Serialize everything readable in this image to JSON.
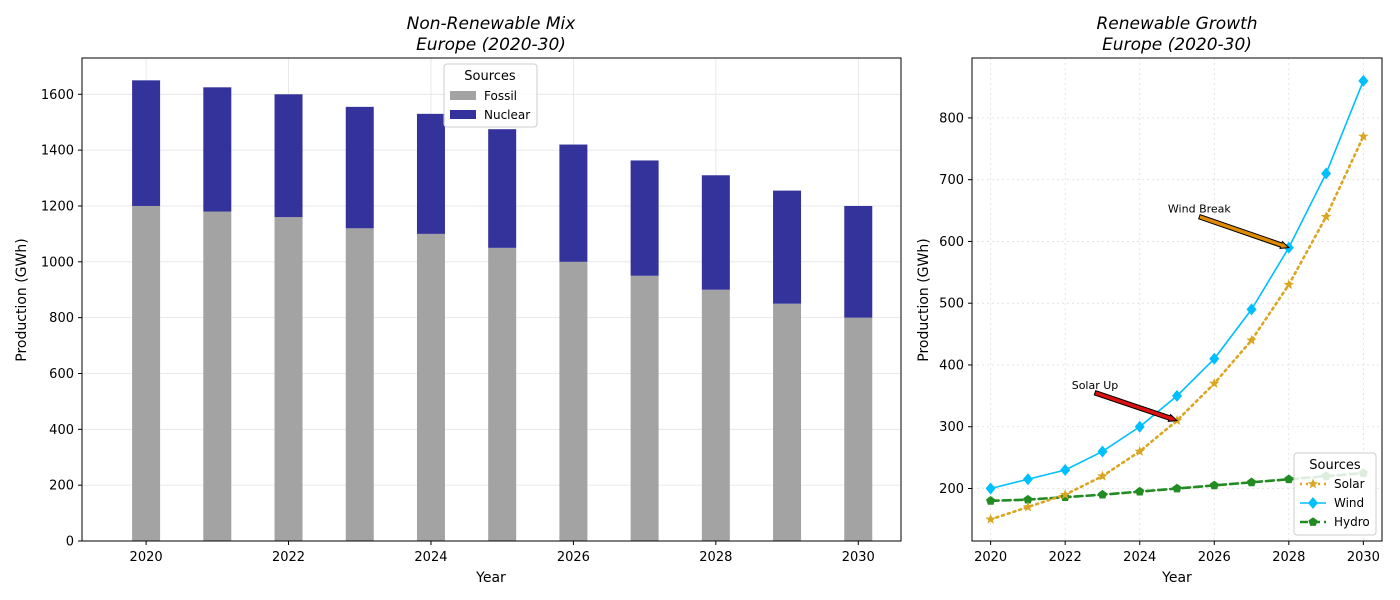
{
  "chart_data": [
    {
      "type": "bar",
      "stacked": true,
      "title_line1": "Non-Renewable Mix",
      "title_line2": "Europe (2020-30)",
      "xlabel": "Year",
      "ylabel": "Production (GWh)",
      "x": [
        2020,
        2021,
        2022,
        2023,
        2024,
        2025,
        2026,
        2027,
        2028,
        2029,
        2030
      ],
      "xticks": [
        2020,
        2022,
        2024,
        2026,
        2028,
        2030
      ],
      "yticks": [
        0,
        200,
        400,
        600,
        800,
        1000,
        1200,
        1400,
        1600
      ],
      "xlim": [
        2019.1,
        2030.6
      ],
      "ylim": [
        0,
        1730
      ],
      "grid": true,
      "legend": {
        "title": "Sources",
        "placement": "top-center"
      },
      "series": [
        {
          "name": "Fossil",
          "color": "#a3a3a3",
          "values": [
            1200,
            1180,
            1160,
            1120,
            1100,
            1050,
            1000,
            950,
            900,
            850,
            800
          ]
        },
        {
          "name": "Nuclear",
          "color": "#33339b",
          "values": [
            450,
            445,
            440,
            435,
            430,
            425,
            420,
            413,
            410,
            405,
            400
          ]
        }
      ]
    },
    {
      "type": "line",
      "title_line1": "Renewable Growth",
      "title_line2": "Europe (2020-30)",
      "xlabel": "Year",
      "ylabel": "Production (GWh)",
      "x": [
        2020,
        2021,
        2022,
        2023,
        2024,
        2025,
        2026,
        2027,
        2028,
        2029,
        2030
      ],
      "xticks": [
        2020,
        2022,
        2024,
        2026,
        2028,
        2030
      ],
      "yticks": [
        200,
        300,
        400,
        500,
        600,
        700,
        800
      ],
      "xlim": [
        2019.5,
        2030.5
      ],
      "ylim": [
        115,
        897
      ],
      "grid": true,
      "legend": {
        "title": "Sources",
        "placement": "bottom-right"
      },
      "series": [
        {
          "name": "Solar",
          "color": "#daa520",
          "style": "dotted",
          "marker": "star",
          "values": [
            150,
            170,
            190,
            220,
            260,
            310,
            370,
            440,
            530,
            640,
            770
          ]
        },
        {
          "name": "Wind",
          "color": "#00bfff",
          "style": "solid",
          "marker": "diamond",
          "values": [
            200,
            215,
            230,
            260,
            300,
            350,
            410,
            490,
            590,
            710,
            860
          ]
        },
        {
          "name": "Hydro",
          "color": "#228b22",
          "style": "dashed",
          "marker": "pentagon",
          "values": [
            180,
            182,
            186,
            190,
            195,
            200,
            205,
            210,
            215,
            220,
            225
          ]
        }
      ],
      "annotations": [
        {
          "text": "Wind Break",
          "point": [
            2028,
            590
          ],
          "text_at": [
            2025.6,
            640
          ],
          "color": "#e08a00"
        },
        {
          "text": "Solar Up",
          "point": [
            2025,
            310
          ],
          "text_at": [
            2022.8,
            355
          ],
          "color": "#dd1111"
        }
      ]
    }
  ]
}
